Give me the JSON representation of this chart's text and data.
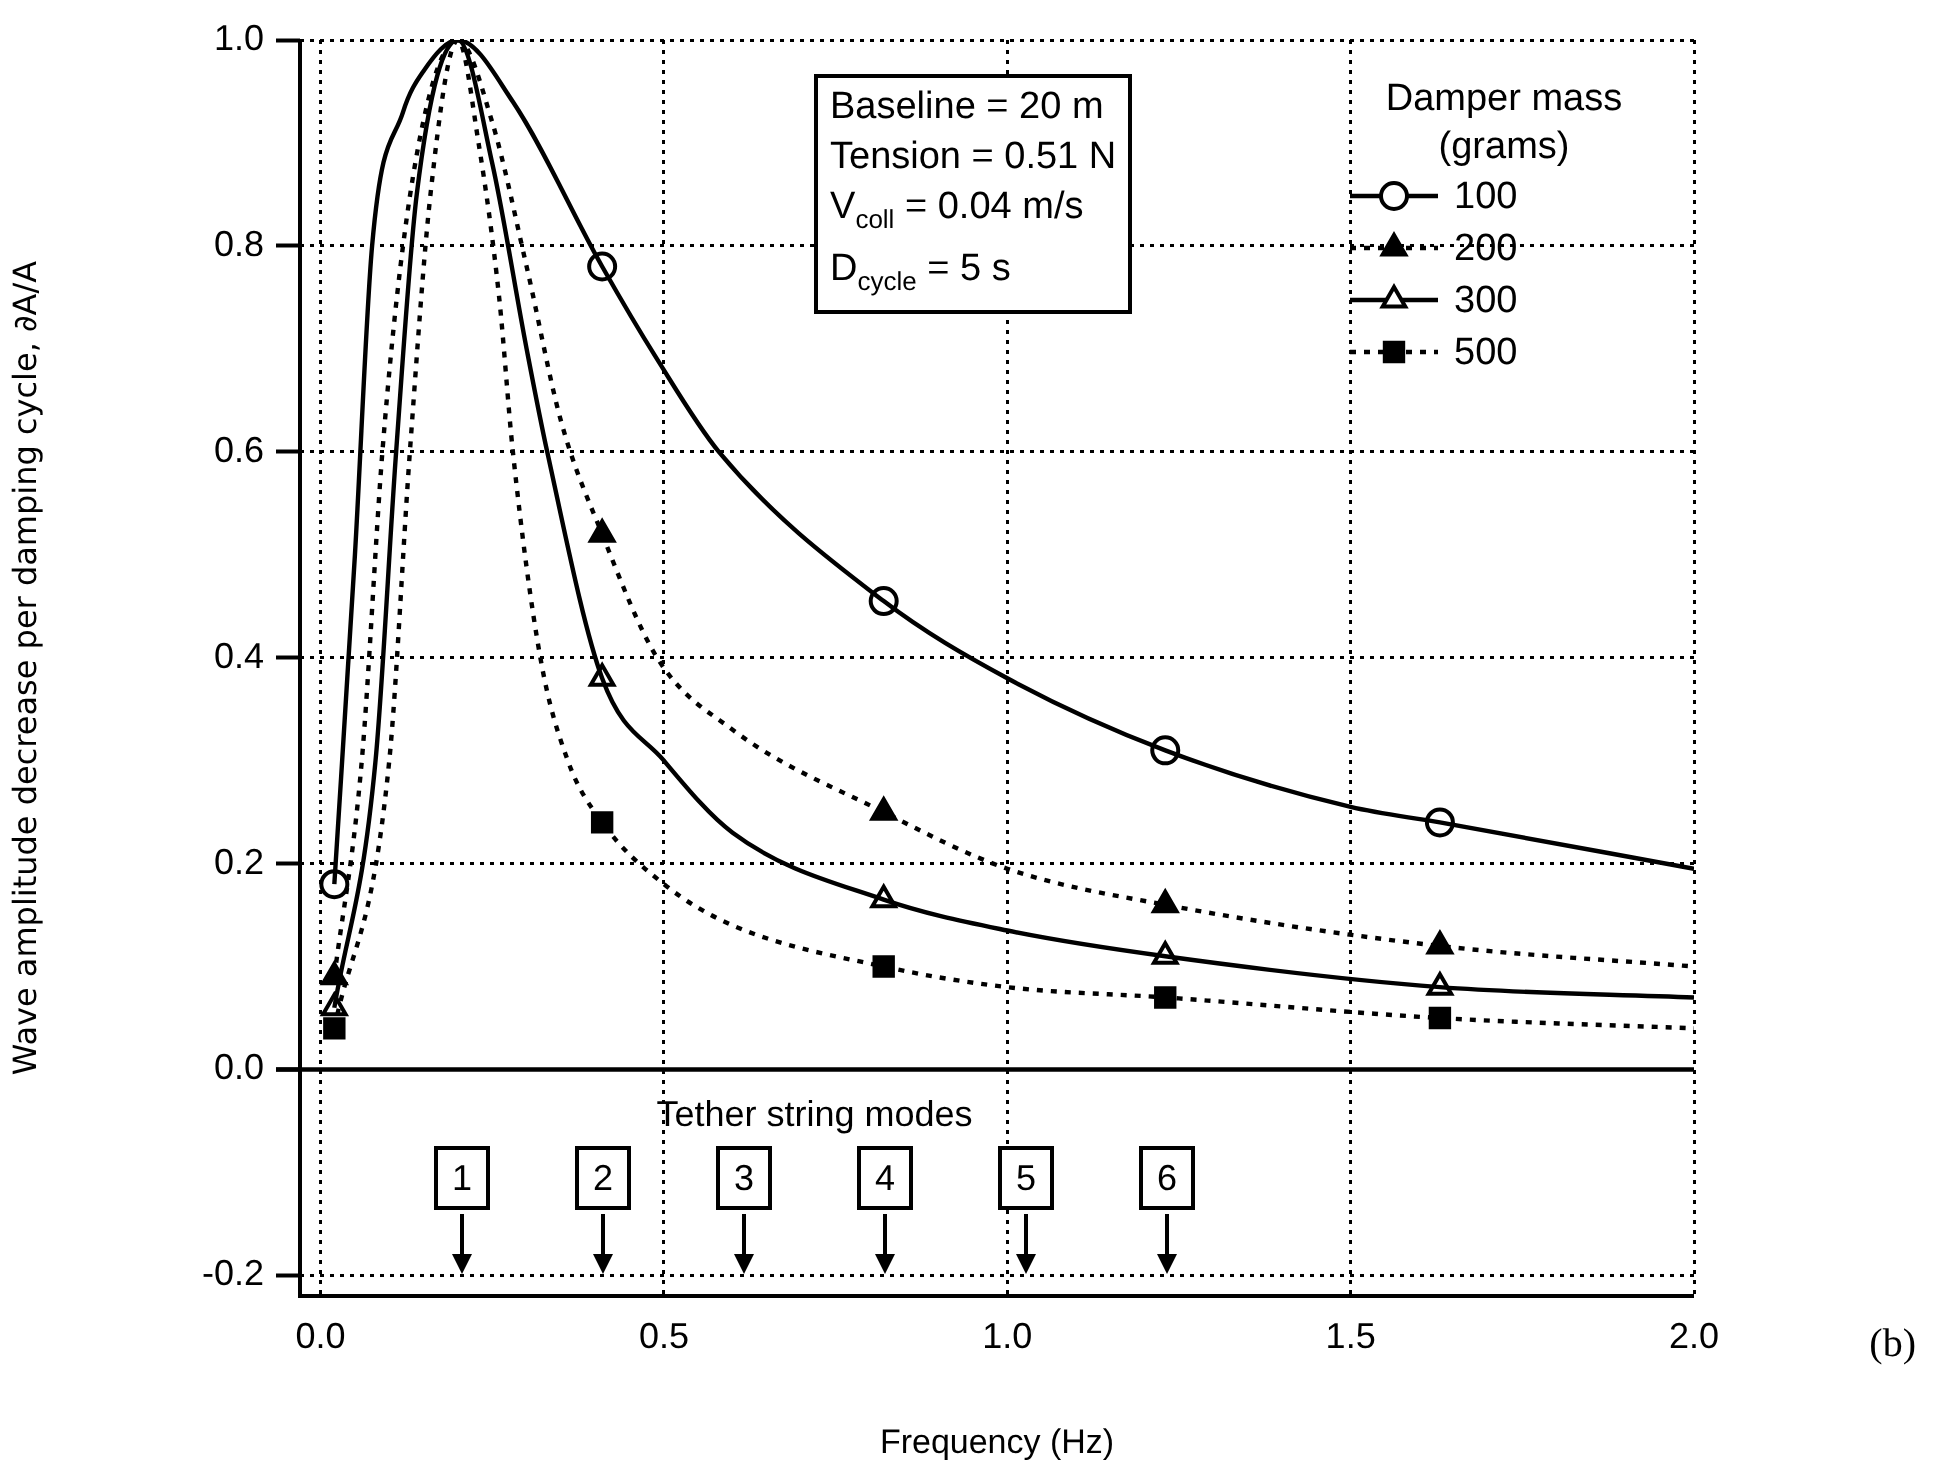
{
  "chart_data": {
    "type": "line",
    "xlabel": "Frequency (Hz)",
    "ylabel": "Wave amplitude decrease per damping cycle, ∂A/A",
    "legend_title": "Damper mass (grams)",
    "xlim": [
      -0.03,
      2.0
    ],
    "xticks": [
      {
        "value": 0,
        "label": "0.0"
      },
      {
        "value": 0.5,
        "label": "0.5"
      },
      {
        "value": 1,
        "label": "1.0"
      },
      {
        "value": 1.5,
        "label": "1.5"
      },
      {
        "value": 2,
        "label": "2.0"
      }
    ],
    "ylim": [
      -0.22,
      1.0
    ],
    "yticks": [
      {
        "value": -0.2,
        "label": "-0.2"
      },
      {
        "value": 0,
        "label": "0.0"
      },
      {
        "value": 0.2,
        "label": "0.2"
      },
      {
        "value": 0.4,
        "label": "0.4"
      },
      {
        "value": 0.6,
        "label": "0.6"
      },
      {
        "value": 0.8,
        "label": "0.8"
      },
      {
        "value": 1,
        "label": "1.0"
      }
    ],
    "grid": true,
    "legend": "top right",
    "ref_lines": [
      {
        "axis": "y",
        "value": 0,
        "line_style": "solid",
        "color": "#000000"
      }
    ],
    "series": [
      {
        "color": "#000000",
        "line_style": "solid",
        "marker": "none",
        "x": [
          0.02,
          0.05,
          0.075,
          0.12,
          0.15,
          0.2,
          0.28,
          0.41,
          0.49,
          0.58,
          0.82,
          1.0,
          1.23,
          1.5,
          1.63,
          2.0
        ],
        "values": [
          0.18,
          0.5,
          0.8,
          0.93,
          0.97,
          1.0,
          0.94,
          0.78,
          0.69,
          0.6,
          0.455,
          0.38,
          0.31,
          0.255,
          0.24,
          0.195
        ]
      },
      {
        "color": "#000000",
        "line_style": "dotted",
        "marker": "none",
        "x": [
          0.02,
          0.06,
          0.09,
          0.12,
          0.16,
          0.2,
          0.25,
          0.3,
          0.35,
          0.41,
          0.49,
          0.6,
          0.82,
          1.0,
          1.23,
          1.63,
          2.0
        ],
        "values": [
          0.09,
          0.3,
          0.6,
          0.8,
          0.95,
          1.0,
          0.92,
          0.78,
          0.63,
          0.52,
          0.4,
          0.33,
          0.25,
          0.195,
          0.16,
          0.12,
          0.1
        ]
      },
      {
        "color": "#000000",
        "line_style": "solid",
        "marker": "none",
        "x": [
          0.02,
          0.08,
          0.11,
          0.14,
          0.2,
          0.25,
          0.3,
          0.33,
          0.41,
          0.5,
          0.6,
          0.82,
          1.0,
          1.23,
          1.63,
          2.0
        ],
        "values": [
          0.06,
          0.3,
          0.6,
          0.85,
          1.0,
          0.88,
          0.7,
          0.6,
          0.38,
          0.3,
          0.23,
          0.165,
          0.135,
          0.11,
          0.08,
          0.07
        ]
      },
      {
        "color": "#000000",
        "line_style": "dotted",
        "marker": "none",
        "x": [
          0.02,
          0.1,
          0.13,
          0.16,
          0.2,
          0.23,
          0.26,
          0.28,
          0.32,
          0.36,
          0.41,
          0.5,
          0.6,
          0.82,
          1.0,
          1.23,
          1.63,
          2.0
        ],
        "values": [
          0.04,
          0.3,
          0.6,
          0.85,
          1.0,
          0.9,
          0.75,
          0.6,
          0.4,
          0.3,
          0.24,
          0.18,
          0.14,
          0.1,
          0.08,
          0.07,
          0.05,
          0.04
        ]
      },
      {
        "type": "scatter",
        "name": "100",
        "color": "#000000",
        "marker": "circle-open",
        "line_style": "solid",
        "x": [
          0.02,
          0.41,
          0.82,
          1.23,
          1.63
        ],
        "values": [
          0.18,
          0.78,
          0.455,
          0.31,
          0.24
        ]
      },
      {
        "type": "scatter",
        "name": "200",
        "color": "#000000",
        "marker": "triangle",
        "line_style": "dotted",
        "x": [
          0.02,
          0.41,
          0.82,
          1.23,
          1.63
        ],
        "values": [
          0.09,
          0.52,
          0.25,
          0.16,
          0.12
        ]
      },
      {
        "type": "scatter",
        "name": "300",
        "color": "#000000",
        "marker": "triangle-open",
        "line_style": "solid",
        "x": [
          0.02,
          0.41,
          0.82,
          1.23,
          1.63
        ],
        "values": [
          0.06,
          0.38,
          0.165,
          0.11,
          0.08
        ]
      },
      {
        "type": "scatter",
        "name": "500",
        "color": "#000000",
        "marker": "square",
        "line_style": "dotted",
        "x": [
          0.02,
          0.41,
          0.82,
          1.23,
          1.63
        ],
        "values": [
          0.04,
          0.24,
          0.1,
          0.07,
          0.05
        ]
      }
    ],
    "annotations": [
      "Baseline = 20 m",
      "Tension = 0.51 N",
      "V$_{coll}$ = 0.04 m/s",
      "D$_{cycle}$ = 5 s",
      "Tether string modes",
      "1",
      "2",
      "3",
      "4",
      "5",
      "6",
      "(b)"
    ]
  }
}
